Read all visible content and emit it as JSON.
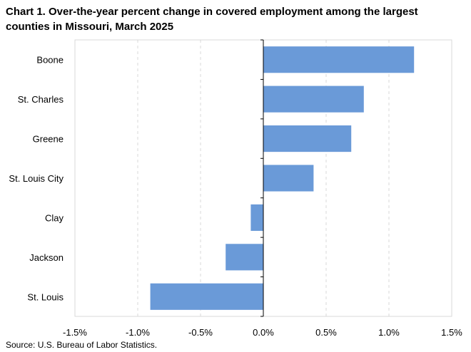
{
  "chart_data": {
    "type": "bar",
    "orientation": "horizontal",
    "title": "Chart 1. Over-the-year percent change in covered employment among the largest counties in Missouri, March 2025",
    "categories": [
      "Boone",
      "St. Charles",
      "Greene",
      "St. Louis City",
      "Clay",
      "Jackson",
      "St. Louis"
    ],
    "values": [
      1.2,
      0.8,
      0.7,
      0.4,
      -0.1,
      -0.3,
      -0.9
    ],
    "xlim": [
      -1.5,
      1.5
    ],
    "x_ticks": [
      -1.5,
      -1.0,
      -0.5,
      0.0,
      0.5,
      1.0,
      1.5
    ],
    "x_tick_labels": [
      "-1.5%",
      "-1.0%",
      "-0.5%",
      "0.0%",
      "0.5%",
      "1.0%",
      "1.5%"
    ],
    "xlabel": "",
    "ylabel": "",
    "grid": "vertical dashed",
    "legend": "none",
    "bar_color": "#6a9ad8",
    "source": "Source: U.S. Bureau of Labor Statistics."
  }
}
